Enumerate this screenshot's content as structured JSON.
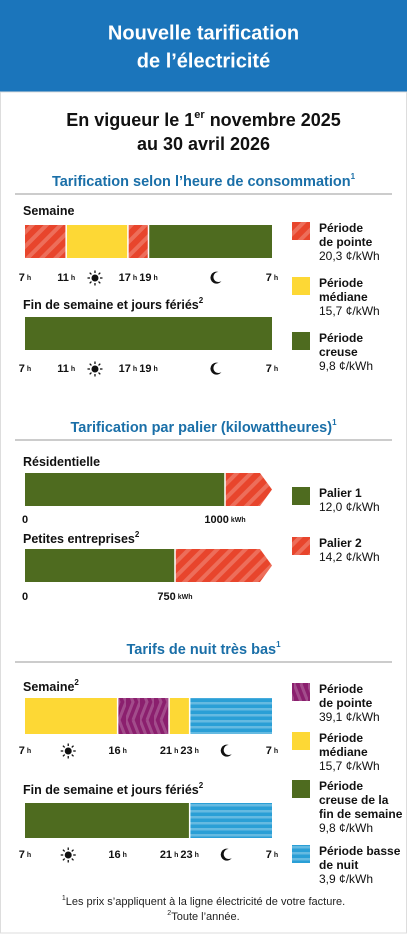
{
  "header": {
    "title_lines": [
      "Nouvelle tarification",
      "de l’électricité"
    ]
  },
  "effective": {
    "line1_start": "En vigueur le 1",
    "line1_sup": "er",
    "line1_end": " novembre 2025",
    "line2": "au 30 avril 2026"
  },
  "sections": [
    {
      "heading": "Tarification selon l’heure de consommation",
      "note": "1",
      "unit": "h",
      "periods": [
        {
          "label_lines": [
            "Période",
            "de pointe"
          ],
          "price": "20,3 ¢/kWh",
          "color": "#e8452c",
          "pattern": "diagonal"
        },
        {
          "label_lines": [
            "Période",
            "médiane"
          ],
          "price": "15,7 ¢/kWh",
          "color": "#fdd835"
        },
        {
          "label_lines": [
            "Période",
            "creuse"
          ],
          "price": "9,8 ¢/kWh",
          "color": "#4e6b1f"
        }
      ],
      "bars": [
        {
          "label": "Semaine",
          "ticks": [
            {
              "value": 7,
              "label": "7"
            },
            11,
            17,
            19,
            {
              "value": 31,
              "label": "7"
            }
          ],
          "segments": [
            {
              "period": 0,
              "from": 7,
              "to": 11
            },
            {
              "period": 1,
              "from": 11,
              "to": 17
            },
            {
              "period": 0,
              "from": 17,
              "to": 19
            },
            {
              "period": 2,
              "from": 19,
              "to": 31
            }
          ]
        },
        {
          "label": "Fin de semaine et jours fériés",
          "note": "2",
          "ticks": [
            {
              "value": 7,
              "label": "7"
            },
            11,
            17,
            19,
            {
              "value": 31,
              "label": "7"
            }
          ],
          "segments": [
            {
              "period": 2,
              "from": 7,
              "to": 31
            }
          ]
        }
      ]
    },
    {
      "heading": "Tarification par palier (kilowattheures)",
      "note": "1",
      "unit": "kWh",
      "periods": [
        {
          "label_lines": [
            "Palier 1"
          ],
          "price": "12,0 ¢/kWh",
          "color": "#4e6b1f"
        },
        {
          "label_lines": [
            "Palier 2"
          ],
          "price": "14,2 ¢/kWh",
          "color": "#e8452c",
          "pattern": "diagonal"
        }
      ],
      "bars": [
        {
          "label": "Résidentielle",
          "ticks": [
            0,
            1000
          ],
          "segments": [
            {
              "period": 0,
              "from": 0,
              "to": 1000
            },
            {
              "period": 1,
              "from": 1000
            }
          ]
        },
        {
          "label": "Petites entreprises",
          "note": "2",
          "ticks": [
            0,
            750
          ],
          "segments": [
            {
              "period": 0,
              "from": 0,
              "to": 750
            },
            {
              "period": 1,
              "from": 750
            }
          ]
        }
      ]
    },
    {
      "heading": "Tarifs de nuit très bas",
      "note": "1",
      "unit": "h",
      "periods": [
        {
          "label_lines": [
            "Période",
            "de pointe"
          ],
          "price": "39,1 ¢/kWh",
          "color": "#8b1f6e",
          "pattern": "chevron"
        },
        {
          "label_lines": [
            "Période",
            "médiane"
          ],
          "price": "15,7 ¢/kWh",
          "color": "#fdd835"
        },
        {
          "label_lines": [
            "Période",
            "creuse de la",
            "fin de semaine"
          ],
          "price": "9,8 ¢/kWh",
          "color": "#4e6b1f"
        },
        {
          "label_lines": [
            "Période basse",
            "de nuit"
          ],
          "price": "3,9 ¢/kWh",
          "color": "#2a9fd6",
          "pattern": "horizontal"
        }
      ],
      "bars": [
        {
          "label": "Semaine",
          "note": "2",
          "ticks": [
            {
              "value": 7,
              "label": "7"
            },
            16,
            21,
            23,
            {
              "value": 31,
              "label": "7"
            }
          ],
          "segments": [
            {
              "period": 1,
              "from": 7,
              "to": 16
            },
            {
              "period": 0,
              "from": 16,
              "to": 21
            },
            {
              "period": 1,
              "from": 21,
              "to": 23
            },
            {
              "period": 3,
              "from": 23,
              "to": 31
            }
          ]
        },
        {
          "label": "Fin de semaine et jours fériés",
          "note": "2",
          "ticks": [
            {
              "value": 7,
              "label": "7"
            },
            16,
            21,
            23,
            {
              "value": 31,
              "label": "7"
            }
          ],
          "segments": [
            {
              "period": 2,
              "from": 7,
              "to": 23
            },
            {
              "period": 3,
              "from": 23,
              "to": 31
            }
          ]
        }
      ]
    }
  ],
  "notes": [
    {
      "mark": "1",
      "text": "Les prix s’appliquent à la ligne électricité de votre facture."
    },
    {
      "mark": "2",
      "text": "Toute l’année."
    }
  ]
}
